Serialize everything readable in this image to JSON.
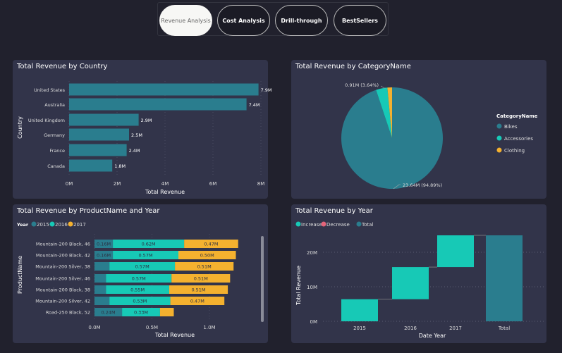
{
  "nav": {
    "tabs": [
      {
        "label": "Revenue Analysis",
        "active": true
      },
      {
        "label": "Cost Analysis"
      },
      {
        "label": "Drill-through"
      },
      {
        "label": "BestSellers"
      }
    ]
  },
  "colors": {
    "bikes": "#2a7d8e",
    "accessories": "#17c9b6",
    "clothing": "#f4b12f",
    "y2015": "#2a7d8e",
    "y2016": "#17c9b6",
    "y2017": "#f4b12f",
    "increase": "#17c9b6",
    "decrease": "#e3647a",
    "total": "#2a7d8e"
  },
  "chart_data": [
    {
      "type": "bar",
      "title": "Total Revenue by Country",
      "xlabel": "Total Revenue",
      "ylabel": "Country",
      "categories": [
        "United States",
        "Australia",
        "United Kingdom",
        "Germany",
        "France",
        "Canada"
      ],
      "values": [
        7.9,
        7.4,
        2.9,
        2.5,
        2.4,
        1.8
      ],
      "data_labels": [
        "7.9M",
        "7.4M",
        "2.9M",
        "2.5M",
        "2.4M",
        "1.8M"
      ],
      "xticks": [
        "0M",
        "2M",
        "4M",
        "6M",
        "8M"
      ],
      "xlim": [
        0,
        8
      ]
    },
    {
      "type": "pie",
      "title": "Total Revenue by CategoryName",
      "legend_title": "CategoryName",
      "categories": [
        "Bikes",
        "Accessories",
        "Clothing"
      ],
      "values": [
        23.64,
        0.91,
        0.36
      ],
      "percent": [
        94.89,
        3.64,
        1.47
      ],
      "labels": [
        "23.64M (94.89%)",
        "0.91M (3.64%)",
        ""
      ],
      "legend": "right"
    },
    {
      "type": "bar",
      "stacked": true,
      "title": "Total Revenue by ProductName and Year",
      "legend_title": "Year",
      "xlabel": "Total Revenue",
      "ylabel": "ProductName",
      "categories": [
        "Mountain-200 Black, 46",
        "Mountain-200 Black, 42",
        "Mountain-200 Silver, 38",
        "Mountain-200 Silver, 46",
        "Mountain-200 Black, 38",
        "Mountain-200 Silver, 42",
        "Road-250 Black, 52"
      ],
      "series": [
        {
          "name": "2015",
          "values": [
            0.16,
            0.16,
            0.13,
            0.1,
            0.1,
            0.13,
            0.24
          ],
          "labels": [
            "0.16M",
            "0.16M",
            "",
            "",
            "",
            "",
            "0.24M"
          ]
        },
        {
          "name": "2016",
          "values": [
            0.62,
            0.57,
            0.57,
            0.57,
            0.55,
            0.53,
            0.33
          ],
          "labels": [
            "0.62M",
            "0.57M",
            "0.57M",
            "0.57M",
            "0.55M",
            "0.53M",
            "0.33M"
          ]
        },
        {
          "name": "2017",
          "values": [
            0.47,
            0.5,
            0.51,
            0.51,
            0.51,
            0.47,
            0.12
          ],
          "labels": [
            "0.47M",
            "0.50M",
            "0.51M",
            "0.51M",
            "0.51M",
            "0.47M",
            ""
          ]
        }
      ],
      "xticks": [
        "0.0M",
        "0.5M",
        "1.0M"
      ],
      "xlim": [
        0,
        1.3
      ]
    },
    {
      "type": "bar",
      "subtype": "waterfall",
      "title": "Total Revenue by Year",
      "legend": [
        "Increase",
        "Decrease",
        "Total"
      ],
      "xlabel": "Date Year",
      "ylabel": "Total Revenue",
      "categories": [
        "2015",
        "2016",
        "2017",
        "Total"
      ],
      "values": [
        6.4,
        9.3,
        9.2,
        24.9
      ],
      "yticks": [
        "0M",
        "10M",
        "20M"
      ],
      "ylim": [
        0,
        25
      ]
    }
  ]
}
